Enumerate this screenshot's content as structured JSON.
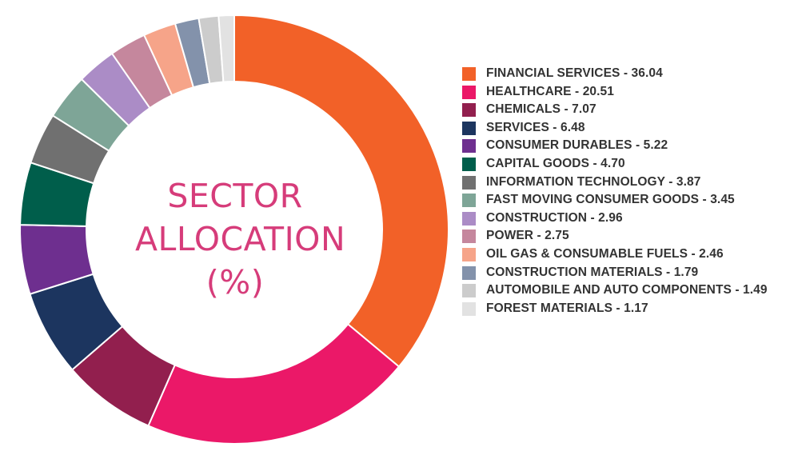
{
  "chart_data": {
    "type": "pie",
    "title_lines": [
      "SECTOR",
      "ALLOCATION",
      "(%)"
    ],
    "legend_position": "right",
    "series": [
      {
        "name": "FINANCIAL SERVICES",
        "label": "FINANCIAL SERVICES - 36.04",
        "value": 36.04,
        "color": "#f26128"
      },
      {
        "name": "HEALTHCARE",
        "label": "HEALTHCARE - 20.51",
        "value": 20.51,
        "color": "#eb1868"
      },
      {
        "name": "CHEMICALS",
        "label": "CHEMICALS - 7.07",
        "value": 7.07,
        "color": "#921f4e"
      },
      {
        "name": "SERVICES",
        "label": "SERVICES - 6.48",
        "value": 6.48,
        "color": "#1c355f"
      },
      {
        "name": "CONSUMER DURABLES",
        "label": "CONSUMER DURABLES - 5.22",
        "value": 5.22,
        "color": "#6e2f8f"
      },
      {
        "name": "CAPITAL GOODS",
        "label": "CAPITAL GOODS - 4.70",
        "value": 4.7,
        "color": "#005e4b"
      },
      {
        "name": "INFORMATION TECHNOLOGY",
        "label": "INFORMATION TECHNOLOGY - 3.87",
        "value": 3.87,
        "color": "#707070"
      },
      {
        "name": "FAST MOVING CONSUMER GOODS",
        "label": "FAST MOVING CONSUMER GOODS - 3.45",
        "value": 3.45,
        "color": "#7ea597"
      },
      {
        "name": "CONSTRUCTION",
        "label": "CONSTRUCTION - 2.96",
        "value": 2.96,
        "color": "#ab8cc6"
      },
      {
        "name": "POWER",
        "label": "POWER - 2.75",
        "value": 2.75,
        "color": "#c5879d"
      },
      {
        "name": "OIL GAS & CONSUMABLE FUELS",
        "label": "OIL GAS & CONSUMABLE FUELS - 2.46",
        "value": 2.46,
        "color": "#f6a489"
      },
      {
        "name": "CONSTRUCTION MATERIALS",
        "label": "CONSTRUCTION MATERIALS - 1.79",
        "value": 1.79,
        "color": "#8392ab"
      },
      {
        "name": "AUTOMOBILE AND AUTO COMPONENTS",
        "label": "AUTOMOBILE AND AUTO COMPONENTS - 1.49",
        "value": 1.49,
        "color": "#cccccc"
      },
      {
        "name": "FOREST MATERIALS",
        "label": "FOREST MATERIALS - 1.17",
        "value": 1.17,
        "color": "#e2e2e2"
      }
    ]
  }
}
